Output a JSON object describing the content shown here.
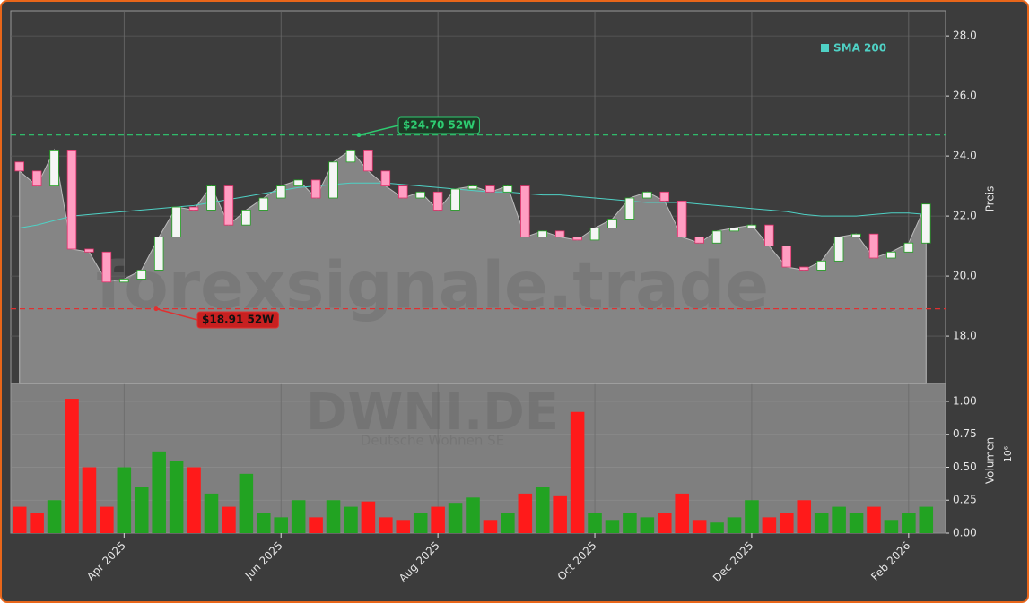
{
  "chart_data": {
    "type": "candlestick",
    "ticker_watermark": "DWNI.DE",
    "name_watermark": "Deutsche Wohnen SE",
    "site_watermark": "forexsignale.trade",
    "ylabel": "Preis",
    "y2label": "Volumen",
    "y2_offset_label": "10⁶",
    "categories": [
      null,
      null,
      null,
      null,
      null,
      null,
      "Apr 2025",
      null,
      null,
      null,
      null,
      null,
      null,
      null,
      null,
      "Jun 2025",
      null,
      null,
      null,
      null,
      null,
      null,
      null,
      null,
      "Aug 2025",
      null,
      null,
      null,
      null,
      null,
      null,
      null,
      null,
      "Oct 2025",
      null,
      null,
      null,
      null,
      null,
      null,
      null,
      null,
      "Dec 2025",
      null,
      null,
      null,
      null,
      null,
      null,
      null,
      null,
      "Feb 2026",
      null
    ],
    "open": [
      23.8,
      23.5,
      23.0,
      24.2,
      20.9,
      20.8,
      19.8,
      19.9,
      20.2,
      21.3,
      22.3,
      22.2,
      23.0,
      21.7,
      22.2,
      22.6,
      23.0,
      23.2,
      22.6,
      23.8,
      24.2,
      23.5,
      23.0,
      22.6,
      22.8,
      22.2,
      22.9,
      23.0,
      22.8,
      23.0,
      21.3,
      21.5,
      21.3,
      21.2,
      21.6,
      21.9,
      22.6,
      22.8,
      22.5,
      21.3,
      21.1,
      21.5,
      21.6,
      21.7,
      21.0,
      20.3,
      20.2,
      20.5,
      21.3,
      21.4,
      20.6,
      20.8,
      21.1
    ],
    "close": [
      23.5,
      23.0,
      24.2,
      20.9,
      20.8,
      19.8,
      19.9,
      20.2,
      21.3,
      22.3,
      22.2,
      23.0,
      21.7,
      22.2,
      22.6,
      23.0,
      23.2,
      22.6,
      23.8,
      24.2,
      23.5,
      23.0,
      22.6,
      22.8,
      22.2,
      22.9,
      23.0,
      22.8,
      23.0,
      21.3,
      21.5,
      21.3,
      21.2,
      21.6,
      21.9,
      22.6,
      22.8,
      22.5,
      21.3,
      21.1,
      21.5,
      21.6,
      21.7,
      21.0,
      20.3,
      20.2,
      20.5,
      21.3,
      21.4,
      20.6,
      20.8,
      21.1,
      22.4
    ],
    "sma": {
      "name": "SMA 200",
      "color": "#4fd1c5",
      "values": [
        21.6,
        21.7,
        21.85,
        22.0,
        22.05,
        22.1,
        22.15,
        22.2,
        22.25,
        22.3,
        22.35,
        22.45,
        22.55,
        22.65,
        22.75,
        22.85,
        22.95,
        23.0,
        23.05,
        23.1,
        23.1,
        23.1,
        23.05,
        23.0,
        22.95,
        22.9,
        22.85,
        22.8,
        22.8,
        22.75,
        22.7,
        22.7,
        22.65,
        22.6,
        22.55,
        22.5,
        22.45,
        22.45,
        22.45,
        22.4,
        22.35,
        22.3,
        22.25,
        22.2,
        22.15,
        22.05,
        22.0,
        22.0,
        22.0,
        22.05,
        22.1,
        22.1,
        22.05
      ]
    },
    "up_color": "#22a322",
    "down_color": "#ff1a1a",
    "ylim": [
      16.42,
      28.84
    ],
    "yticks": [
      {
        "value": 18,
        "label": "18.0"
      },
      {
        "value": 20,
        "label": "20.0"
      },
      {
        "value": 22,
        "label": "22.0"
      },
      {
        "value": 24,
        "label": "24.0"
      },
      {
        "value": 26,
        "label": "26.0"
      },
      {
        "value": 28,
        "label": "28.0"
      }
    ],
    "high_52w": {
      "value": 24.7,
      "label": "$24.70 52W",
      "color": "#2ecc71"
    },
    "low_52w": {
      "value": 18.91,
      "label": "$18.91 52W",
      "color": "#e03030"
    },
    "volume": [
      0.2,
      0.15,
      0.25,
      1.02,
      0.5,
      0.2,
      0.5,
      0.35,
      0.62,
      0.55,
      0.5,
      0.3,
      0.2,
      0.45,
      0.15,
      0.12,
      0.25,
      0.12,
      0.25,
      0.2,
      0.24,
      0.12,
      0.1,
      0.15,
      0.2,
      0.23,
      0.27,
      0.1,
      0.15,
      0.3,
      0.35,
      0.28,
      0.92,
      0.15,
      0.1,
      0.15,
      0.12,
      0.15,
      0.3,
      0.1,
      0.08,
      0.12,
      0.25,
      0.12,
      0.15,
      0.25,
      0.15,
      0.2,
      0.15,
      0.2,
      0.1,
      0.15,
      0.2
    ],
    "y2lim": [
      0,
      1.136
    ],
    "y2ticks": [
      {
        "value": 0,
        "label": "0.00"
      },
      {
        "value": 0.25,
        "label": "0.25"
      },
      {
        "value": 0.5,
        "label": "0.50"
      },
      {
        "value": 0.75,
        "label": "0.75"
      },
      {
        "value": 1,
        "label": "1.00"
      }
    ],
    "grid": true
  }
}
